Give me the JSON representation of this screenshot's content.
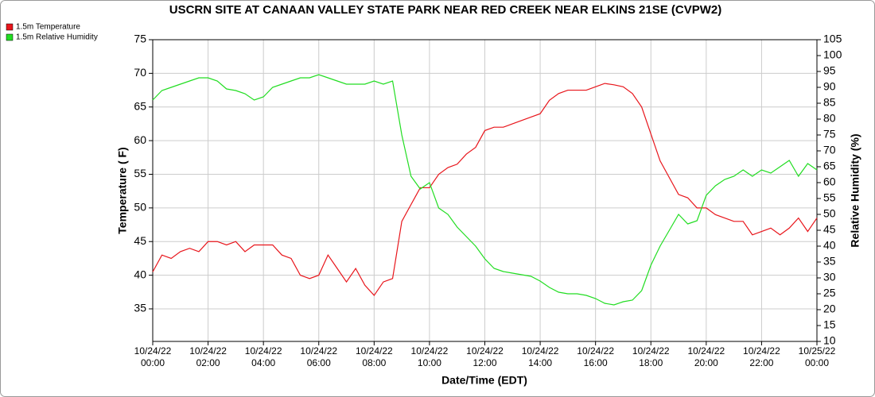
{
  "chart_data": {
    "type": "line",
    "title": "USCRN SITE AT CANAAN VALLEY STATE PARK NEAR RED CREEK NEAR ELKINS 21SE (CVPW2)",
    "xlabel": "Date/Time (EDT)",
    "ylabel": "Temperature ( F)",
    "y2label": "Relative Humidity (%)",
    "legend": "top-left",
    "grid": true,
    "xlim": [
      0,
      24
    ],
    "xticks": [
      {
        "value": 0,
        "label": "00:00",
        "date": "10/24/22"
      },
      {
        "value": 2,
        "label": "02:00",
        "date": "10/24/22"
      },
      {
        "value": 4,
        "label": "04:00",
        "date": "10/24/22"
      },
      {
        "value": 6,
        "label": "06:00",
        "date": "10/24/22"
      },
      {
        "value": 8,
        "label": "08:00",
        "date": "10/24/22"
      },
      {
        "value": 10,
        "label": "10:00",
        "date": "10/24/22"
      },
      {
        "value": 12,
        "label": "12:00",
        "date": "10/24/22"
      },
      {
        "value": 14,
        "label": "14:00",
        "date": "10/24/22"
      },
      {
        "value": 16,
        "label": "16:00",
        "date": "10/24/22"
      },
      {
        "value": 18,
        "label": "18:00",
        "date": "10/24/22"
      },
      {
        "value": 20,
        "label": "20:00",
        "date": "10/24/22"
      },
      {
        "value": 22,
        "label": "22:00",
        "date": "10/24/22"
      },
      {
        "value": 24,
        "label": "00:00",
        "date": "10/25/22"
      }
    ],
    "ylim": [
      30.16,
      75
    ],
    "yticks": [
      35,
      40,
      45,
      50,
      55,
      60,
      65,
      70,
      75
    ],
    "y2lim": [
      10,
      105
    ],
    "y2ticks": [
      10,
      15,
      20,
      25,
      30,
      35,
      40,
      45,
      50,
      55,
      60,
      65,
      70,
      75,
      80,
      85,
      90,
      95,
      100,
      105
    ],
    "x": [
      0,
      0.333,
      0.667,
      1,
      1.333,
      1.667,
      2,
      2.333,
      2.667,
      3,
      3.333,
      3.667,
      4,
      4.333,
      4.667,
      5,
      5.333,
      5.667,
      6,
      6.333,
      6.667,
      7,
      7.333,
      7.667,
      8,
      8.333,
      8.667,
      9,
      9.333,
      9.667,
      10,
      10.333,
      10.667,
      11,
      11.333,
      11.667,
      12,
      12.333,
      12.667,
      13,
      13.333,
      13.667,
      14,
      14.333,
      14.667,
      15,
      15.333,
      15.667,
      16,
      16.333,
      16.667,
      17,
      17.333,
      17.667,
      18,
      18.333,
      18.667,
      19,
      19.333,
      19.667,
      20,
      20.333,
      20.667,
      21,
      21.333,
      21.667,
      22,
      22.333,
      22.667,
      23,
      23.333,
      23.667,
      24
    ],
    "series": [
      {
        "name": "1.5m Temperature",
        "color": "#e8151b",
        "axis": "y",
        "values": [
          40.5,
          43,
          42.5,
          43.5,
          44,
          43.5,
          45,
          45,
          44.5,
          45,
          43.5,
          44.5,
          44.5,
          44.5,
          43,
          42.5,
          40,
          39.5,
          40,
          43,
          41,
          39,
          41,
          38.5,
          37,
          39,
          39.5,
          48,
          50.5,
          53,
          53,
          55,
          56,
          56.5,
          58,
          59,
          61.5,
          62,
          62,
          62.5,
          63,
          63.5,
          64,
          66,
          67,
          67.5,
          67.5,
          67.5,
          68,
          68.5,
          68.3,
          68,
          67,
          65,
          61,
          57,
          54.5,
          52,
          51.5,
          50,
          50,
          49,
          48.5,
          48,
          48,
          46,
          46.5,
          47,
          46,
          47,
          48.5,
          46.5,
          48.5
        ]
      },
      {
        "name": "1.5m Relative Humidity",
        "color": "#22dd22",
        "axis": "y2",
        "values": [
          86,
          89,
          90,
          91,
          92,
          93,
          93,
          92,
          89.5,
          89,
          88,
          86,
          87,
          90,
          91,
          92,
          93,
          93,
          94,
          93,
          92,
          91,
          91,
          91,
          92,
          91,
          92,
          75,
          62,
          58,
          60,
          52,
          50,
          46,
          43,
          40,
          36,
          33,
          32,
          31.5,
          31,
          30.5,
          29,
          27,
          25.5,
          25,
          25,
          24.5,
          23.5,
          22,
          21.5,
          22.5,
          23,
          26,
          34,
          40,
          45,
          50,
          47,
          48,
          56,
          59,
          61,
          62,
          64,
          62,
          64,
          63,
          65,
          67,
          62,
          66,
          64
        ]
      }
    ]
  }
}
